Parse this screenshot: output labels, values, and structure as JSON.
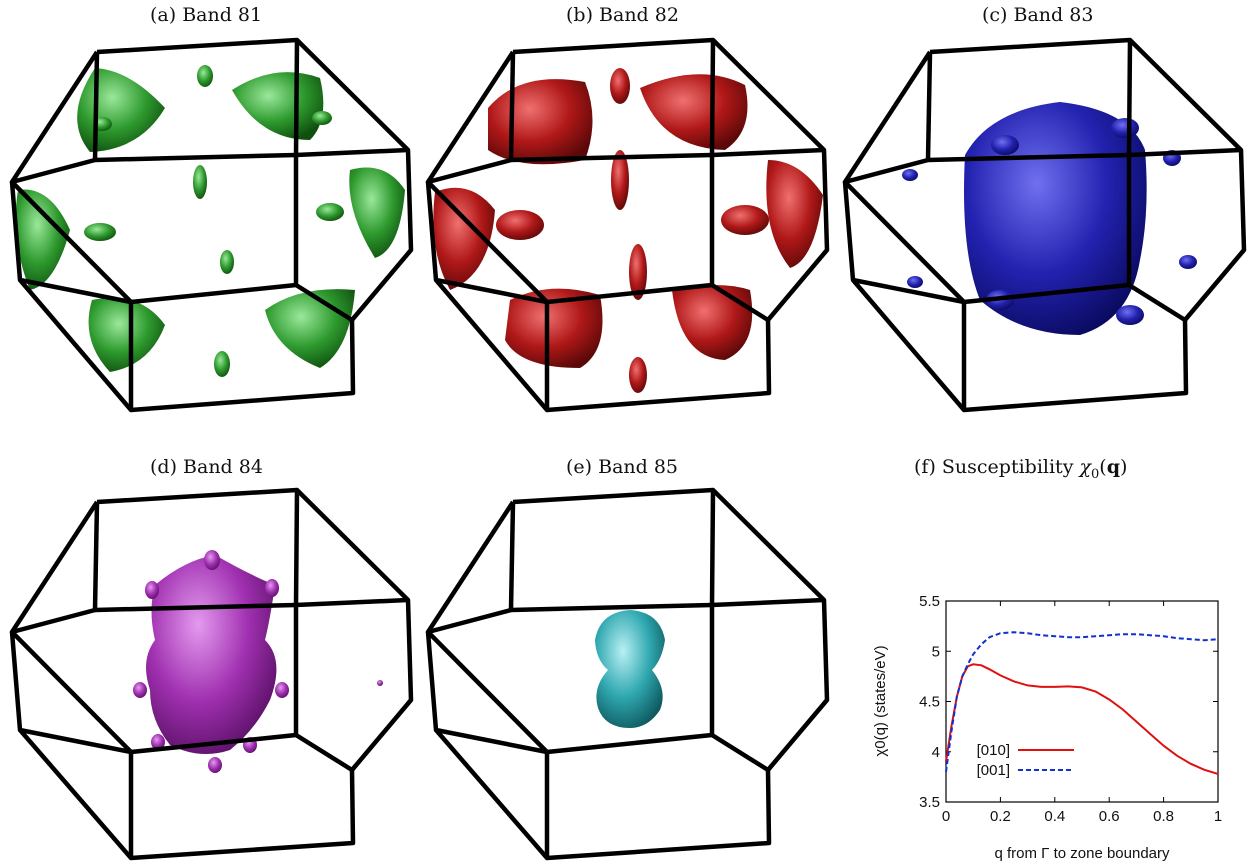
{
  "panels": [
    {
      "label": "(a) Band 81",
      "color": "#2e9a2e"
    },
    {
      "label": "(b) Band 82",
      "color": "#b01818"
    },
    {
      "label": "(c) Band 83",
      "color": "#2a2ab0"
    },
    {
      "label": "(d) Band 84",
      "color": "#a030b0"
    },
    {
      "label": "(e) Band 85",
      "color": "#30a8b0"
    }
  ],
  "panel_f": {
    "label_prefix": "(f) Susceptibility ",
    "label_math": "χ",
    "label_sub": "0",
    "label_arg_open": "(",
    "label_arg": "q",
    "label_arg_close": ")"
  },
  "chart_data": {
    "type": "line",
    "title": "",
    "xlabel": "q from Γ to zone boundary",
    "ylabel": "χ0(q) (states/eV)",
    "xlim": [
      0,
      1
    ],
    "ylim": [
      3.5,
      5.5
    ],
    "xticks": [
      "0",
      "0.2",
      "0.4",
      "0.6",
      "0.8",
      "1"
    ],
    "yticks": [
      "3.5",
      "4",
      "4.5",
      "5",
      "5.5"
    ],
    "legend_position": "bottom-left",
    "series": [
      {
        "name": "[010]",
        "color": "#e01010",
        "style": "solid",
        "x": [
          0,
          0.02,
          0.04,
          0.06,
          0.08,
          0.1,
          0.13,
          0.16,
          0.2,
          0.25,
          0.3,
          0.35,
          0.4,
          0.45,
          0.5,
          0.55,
          0.6,
          0.65,
          0.7,
          0.75,
          0.8,
          0.85,
          0.9,
          0.95,
          1.0
        ],
        "y": [
          3.9,
          4.25,
          4.55,
          4.75,
          4.85,
          4.87,
          4.86,
          4.82,
          4.76,
          4.7,
          4.66,
          4.645,
          4.645,
          4.65,
          4.64,
          4.6,
          4.52,
          4.42,
          4.3,
          4.18,
          4.06,
          3.96,
          3.88,
          3.82,
          3.78
        ]
      },
      {
        "name": "[001]",
        "color": "#1030d0",
        "style": "dashed",
        "x": [
          0,
          0.02,
          0.04,
          0.06,
          0.08,
          0.1,
          0.13,
          0.16,
          0.2,
          0.25,
          0.3,
          0.35,
          0.4,
          0.45,
          0.5,
          0.55,
          0.6,
          0.65,
          0.7,
          0.75,
          0.8,
          0.85,
          0.9,
          0.95,
          1.0
        ],
        "y": [
          3.8,
          4.2,
          4.55,
          4.75,
          4.87,
          4.97,
          5.07,
          5.14,
          5.18,
          5.19,
          5.18,
          5.16,
          5.15,
          5.14,
          5.14,
          5.15,
          5.16,
          5.17,
          5.17,
          5.16,
          5.15,
          5.13,
          5.12,
          5.11,
          5.12
        ]
      }
    ]
  }
}
